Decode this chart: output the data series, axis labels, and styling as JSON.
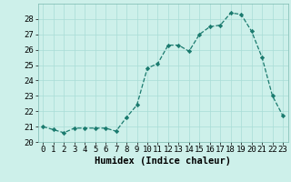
{
  "x": [
    0,
    1,
    2,
    3,
    4,
    5,
    6,
    7,
    8,
    9,
    10,
    11,
    12,
    13,
    14,
    15,
    16,
    17,
    18,
    19,
    20,
    21,
    22,
    23
  ],
  "y": [
    21.0,
    20.8,
    20.6,
    20.9,
    20.9,
    20.9,
    20.9,
    20.7,
    21.6,
    22.4,
    24.8,
    25.1,
    26.3,
    26.3,
    25.9,
    27.0,
    27.5,
    27.6,
    28.4,
    28.3,
    27.2,
    25.5,
    23.0,
    21.7
  ],
  "line_color": "#1a7a6e",
  "marker_color": "#1a7a6e",
  "bg_color": "#cdf0ea",
  "grid_color": "#a8ddd6",
  "xlabel": "Humidex (Indice chaleur)",
  "xlim": [
    -0.5,
    23.5
  ],
  "ylim": [
    20,
    29
  ],
  "yticks": [
    20,
    21,
    22,
    23,
    24,
    25,
    26,
    27,
    28
  ],
  "tick_fontsize": 6.5,
  "label_fontsize": 7.5
}
